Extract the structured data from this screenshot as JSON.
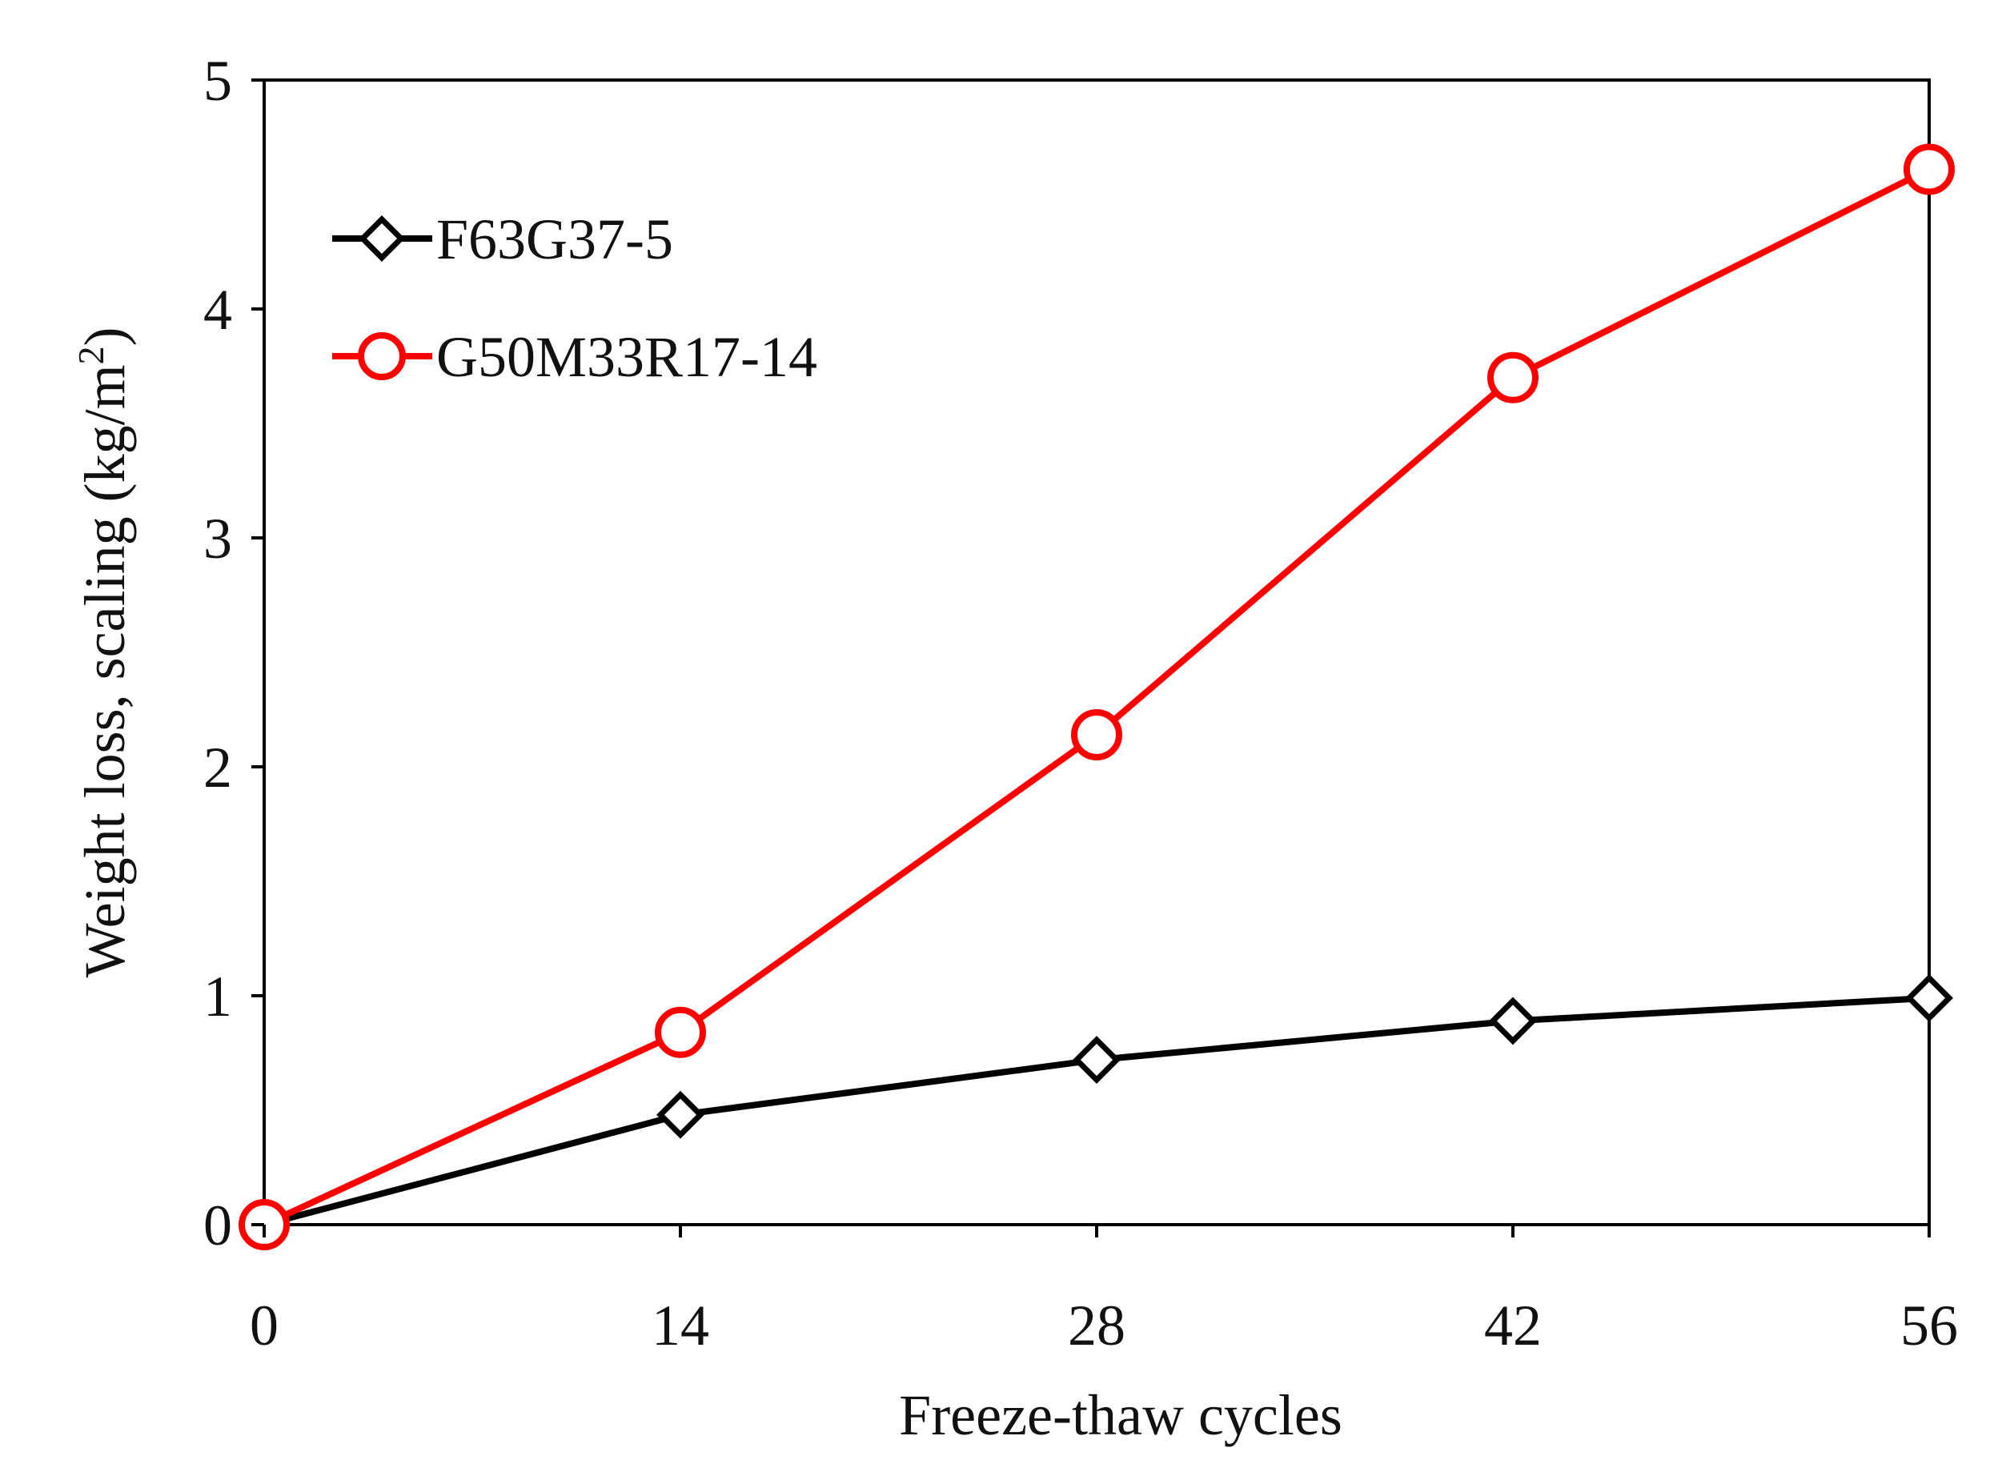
{
  "chart_data": {
    "type": "line",
    "title": "",
    "xlabel": "Freeze-thaw cycles",
    "ylabel_main": "Weight loss, scaling (kg/m",
    "ylabel_sup": "2",
    "ylabel_close": ")",
    "x": [
      0,
      14,
      28,
      42,
      56
    ],
    "xlim": [
      0,
      56
    ],
    "ylim": [
      0,
      5
    ],
    "xticks": [
      "0",
      "14",
      "28",
      "42",
      "56"
    ],
    "yticks": [
      "0",
      "1",
      "2",
      "3",
      "4",
      "5"
    ],
    "grid": false,
    "legend_position": "top-left",
    "series": [
      {
        "name": "F63G37-5",
        "color": "#000000",
        "marker": "diamond",
        "values": [
          0,
          0.48,
          0.72,
          0.89,
          0.99
        ]
      },
      {
        "name": "G50M33R17-14",
        "color": "#ff0000",
        "marker": "circle",
        "values": [
          0,
          0.84,
          2.14,
          3.7,
          4.61
        ]
      }
    ]
  }
}
